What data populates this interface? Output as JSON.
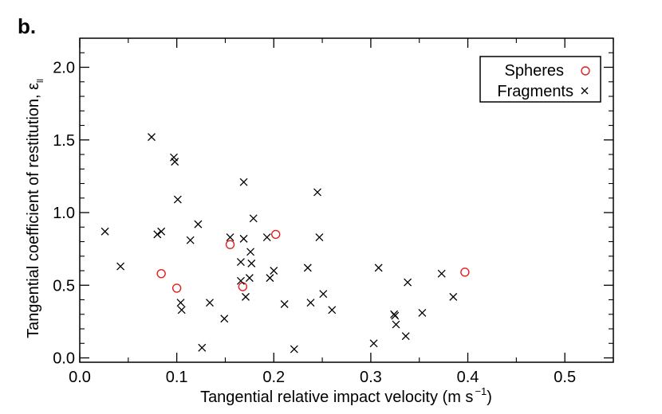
{
  "panel_label": "b.",
  "chart_data": {
    "type": "scatter",
    "title": "",
    "xlabel": "Tangential relative impact velocity",
    "xlabel_unit": "(m s",
    "xlabel_unit_exp": "−1",
    "xlabel_unit_close": ")",
    "ylabel": "Tangential coefficient of restitution, ε",
    "ylabel_sub": "ll",
    "xlim": [
      0.0,
      0.55
    ],
    "ylim": [
      -0.03,
      2.2
    ],
    "xticks": [
      0.0,
      0.1,
      0.2,
      0.3,
      0.4,
      0.5
    ],
    "xtick_labels": [
      "0.0",
      "0.1",
      "0.2",
      "0.3",
      "0.4",
      "0.5"
    ],
    "yticks": [
      0.0,
      0.5,
      1.0,
      1.5,
      2.0
    ],
    "ytick_labels": [
      "0.0",
      "0.5",
      "1.0",
      "1.5",
      "2.0"
    ],
    "legend_position": "top-right",
    "series": [
      {
        "name": "Spheres",
        "marker": "circle",
        "color": "#e02020",
        "points": [
          [
            0.084,
            0.58
          ],
          [
            0.1,
            0.48
          ],
          [
            0.155,
            0.78
          ],
          [
            0.168,
            0.49
          ],
          [
            0.202,
            0.85
          ],
          [
            0.397,
            0.59
          ]
        ]
      },
      {
        "name": "Fragments",
        "marker": "x",
        "color": "#000000",
        "points": [
          [
            0.026,
            0.87
          ],
          [
            0.042,
            0.63
          ],
          [
            0.074,
            1.52
          ],
          [
            0.08,
            0.85
          ],
          [
            0.084,
            0.87
          ],
          [
            0.097,
            1.38
          ],
          [
            0.098,
            1.35
          ],
          [
            0.101,
            1.09
          ],
          [
            0.104,
            0.38
          ],
          [
            0.105,
            0.33
          ],
          [
            0.114,
            0.81
          ],
          [
            0.122,
            0.92
          ],
          [
            0.126,
            0.07
          ],
          [
            0.134,
            0.38
          ],
          [
            0.149,
            0.27
          ],
          [
            0.155,
            0.83
          ],
          [
            0.166,
            0.66
          ],
          [
            0.166,
            0.53
          ],
          [
            0.169,
            1.21
          ],
          [
            0.169,
            0.82
          ],
          [
            0.171,
            0.42
          ],
          [
            0.175,
            0.55
          ],
          [
            0.176,
            0.73
          ],
          [
            0.177,
            0.65
          ],
          [
            0.179,
            0.96
          ],
          [
            0.193,
            0.83
          ],
          [
            0.196,
            0.55
          ],
          [
            0.2,
            0.6
          ],
          [
            0.211,
            0.37
          ],
          [
            0.221,
            0.06
          ],
          [
            0.235,
            0.62
          ],
          [
            0.238,
            0.38
          ],
          [
            0.245,
            1.14
          ],
          [
            0.247,
            0.83
          ],
          [
            0.251,
            0.44
          ],
          [
            0.26,
            0.33
          ],
          [
            0.303,
            0.1
          ],
          [
            0.308,
            0.62
          ],
          [
            0.324,
            0.3
          ],
          [
            0.325,
            0.29
          ],
          [
            0.326,
            0.23
          ],
          [
            0.336,
            0.15
          ],
          [
            0.338,
            0.52
          ],
          [
            0.353,
            0.31
          ],
          [
            0.373,
            0.58
          ],
          [
            0.385,
            0.42
          ]
        ]
      }
    ]
  }
}
